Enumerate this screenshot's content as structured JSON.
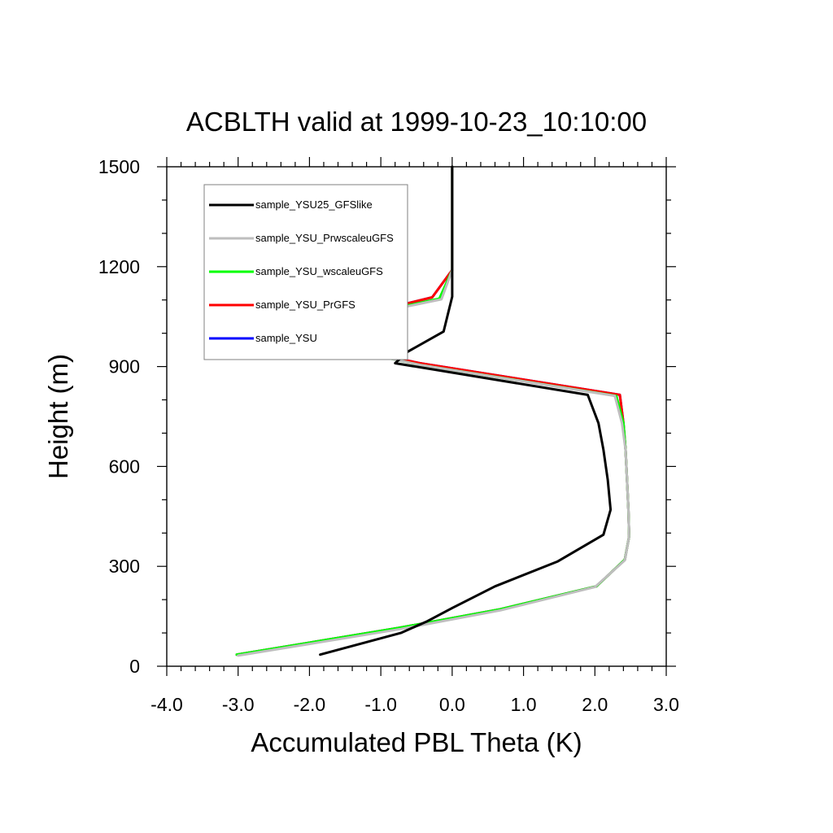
{
  "chart_data": {
    "type": "line",
    "title": "ACBLTH valid at 1999-10-23_10:10:00",
    "xlabel": "Accumulated PBL Theta (K)",
    "ylabel": "Height (m)",
    "xlim": [
      -4.0,
      3.0
    ],
    "ylim": [
      0,
      1500
    ],
    "xticks": [
      -4.0,
      -3.0,
      -2.0,
      -1.0,
      0.0,
      1.0,
      2.0,
      3.0
    ],
    "xtick_labels": [
      "-4.0",
      "-3.0",
      "-2.0",
      "-1.0",
      "0.0",
      "1.0",
      "2.0",
      "3.0"
    ],
    "yticks": [
      0,
      300,
      600,
      900,
      1200,
      1500
    ],
    "ytick_labels": [
      "0",
      "300",
      "600",
      "900",
      "1200",
      "1500"
    ],
    "grid": false,
    "legend_position": "top-left",
    "series": [
      {
        "name": "sample_YSU",
        "color": "#0000ff",
        "points": [
          [
            -3.02,
            35
          ],
          [
            -0.75,
            115
          ],
          [
            0.65,
            170
          ],
          [
            2.02,
            240
          ],
          [
            2.42,
            320
          ],
          [
            2.48,
            390
          ],
          [
            2.47,
            470
          ],
          [
            2.45,
            560
          ],
          [
            2.43,
            650
          ],
          [
            2.4,
            730
          ],
          [
            2.35,
            815
          ],
          [
            -0.45,
            910
          ],
          [
            -1.0,
            935
          ],
          [
            -2.35,
            1000
          ],
          [
            -0.28,
            1108
          ],
          [
            0.0,
            1190
          ],
          [
            0.0,
            1280
          ],
          [
            0.0,
            1500
          ]
        ]
      },
      {
        "name": "sample_YSU_PrGFS",
        "color": "#ff0000",
        "points": [
          [
            -3.02,
            35
          ],
          [
            -0.75,
            115
          ],
          [
            0.65,
            170
          ],
          [
            2.02,
            240
          ],
          [
            2.42,
            320
          ],
          [
            2.48,
            390
          ],
          [
            2.47,
            470
          ],
          [
            2.45,
            560
          ],
          [
            2.43,
            650
          ],
          [
            2.4,
            730
          ],
          [
            2.35,
            815
          ],
          [
            -0.45,
            910
          ],
          [
            -1.0,
            935
          ],
          [
            -2.35,
            1000
          ],
          [
            -0.28,
            1108
          ],
          [
            0.0,
            1190
          ],
          [
            0.0,
            1280
          ],
          [
            0.0,
            1500
          ]
        ]
      },
      {
        "name": "sample_YSU_wscaleuGFS",
        "color": "#00ff00",
        "points": [
          [
            -3.02,
            35
          ],
          [
            -0.75,
            115
          ],
          [
            0.65,
            170
          ],
          [
            2.02,
            240
          ],
          [
            2.42,
            320
          ],
          [
            2.48,
            390
          ],
          [
            2.47,
            470
          ],
          [
            2.45,
            560
          ],
          [
            2.43,
            650
          ],
          [
            2.4,
            730
          ],
          [
            2.3,
            812
          ],
          [
            -0.45,
            905
          ],
          [
            -1.0,
            930
          ],
          [
            -2.42,
            1000
          ],
          [
            -0.18,
            1104
          ],
          [
            0.0,
            1190
          ],
          [
            0.0,
            1280
          ],
          [
            0.0,
            1500
          ]
        ]
      },
      {
        "name": "sample_YSU_PrwscaleuGFS",
        "color": "#bebebe",
        "points": [
          [
            -3.0,
            32
          ],
          [
            -0.72,
            112
          ],
          [
            0.68,
            168
          ],
          [
            2.0,
            238
          ],
          [
            2.42,
            318
          ],
          [
            2.48,
            390
          ],
          [
            2.47,
            470
          ],
          [
            2.45,
            560
          ],
          [
            2.43,
            650
          ],
          [
            2.38,
            730
          ],
          [
            2.28,
            812
          ],
          [
            -0.45,
            905
          ],
          [
            -1.0,
            930
          ],
          [
            -2.45,
            1000
          ],
          [
            -0.15,
            1102
          ],
          [
            0.0,
            1190
          ],
          [
            0.0,
            1280
          ],
          [
            0.0,
            1500
          ]
        ]
      },
      {
        "name": "sample_YSU25_GFSlike",
        "color": "#000000",
        "points": [
          [
            -1.85,
            35
          ],
          [
            -0.72,
            100
          ],
          [
            -0.35,
            135
          ],
          [
            0.0,
            175
          ],
          [
            0.6,
            240
          ],
          [
            1.48,
            315
          ],
          [
            2.12,
            395
          ],
          [
            2.22,
            470
          ],
          [
            2.18,
            560
          ],
          [
            2.12,
            650
          ],
          [
            2.05,
            730
          ],
          [
            1.9,
            815
          ],
          [
            -0.8,
            910
          ],
          [
            -0.62,
            945
          ],
          [
            -0.12,
            1005
          ],
          [
            0.0,
            1110
          ],
          [
            0.0,
            1200
          ],
          [
            0.0,
            1500
          ]
        ]
      }
    ],
    "legend": [
      {
        "label": "sample_YSU25_GFSlike",
        "color": "#000000"
      },
      {
        "label": "sample_YSU_PrwscaleuGFS",
        "color": "#bebebe"
      },
      {
        "label": "sample_YSU_wscaleuGFS",
        "color": "#00ff00"
      },
      {
        "label": "sample_YSU_PrGFS",
        "color": "#ff0000"
      },
      {
        "label": "sample_YSU",
        "color": "#0000ff"
      }
    ]
  }
}
